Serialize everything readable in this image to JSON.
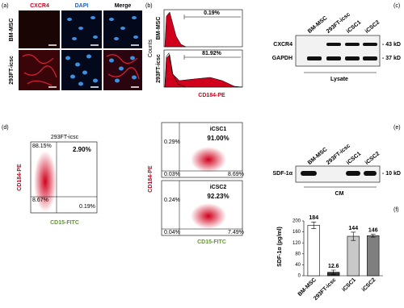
{
  "panels": {
    "a": {
      "label": "(a)",
      "columns": [
        "CXCR4",
        "DAPI",
        "Merge"
      ],
      "rows": [
        "BM-MSC",
        "293FT-icsc"
      ]
    },
    "b": {
      "label": "(b)",
      "rows": [
        "BM-MSC",
        "293FT-icsc"
      ],
      "y_label": "Counts",
      "x_label": "CD184-PE",
      "percentages": [
        "0.19%",
        "81.92%"
      ]
    },
    "c": {
      "label": "(c)",
      "lanes": [
        "BM-MSC",
        "293FT-icsc",
        "iCSC1",
        "iCSC2"
      ],
      "bands": [
        "CXCR4",
        "GAPDH"
      ],
      "sizes": [
        "- 43 kD",
        "- 37 kD"
      ],
      "footer": "Lysate"
    },
    "d": {
      "label": "(d)",
      "y_label": "CD184-PE",
      "x_label": "CD15-FITC",
      "plots": [
        {
          "title": "293FT-icsc",
          "quadrants": [
            "88.15%",
            "2.90%",
            "8.67%",
            "0.19%"
          ]
        },
        {
          "title": "iCSC1",
          "quadrants": [
            "0.29%",
            "91.00%",
            "0.03%",
            "8.69%"
          ]
        },
        {
          "title": "iCSC2",
          "quadrants": [
            "0.24%",
            "92.23%",
            "0.04%",
            "7.49%"
          ]
        }
      ]
    },
    "e": {
      "label": "(e)",
      "lanes": [
        "BM-MSC",
        "293FT-icsc",
        "iCSC1",
        "iCSC2"
      ],
      "band": "SDF-1α",
      "size": "- 10 kD",
      "footer": "CM"
    }
  },
  "chart_data": {
    "type": "bar",
    "panel_label": "(f)",
    "y_label": "SDF-1α (pg/ml)",
    "categories": [
      "BM-MSC",
      "293FT-icsc",
      "iCSC1",
      "iCSC2"
    ],
    "values": [
      184,
      12.6,
      144,
      146
    ],
    "errors": [
      12,
      8,
      15,
      5
    ],
    "colors": [
      "#ffffff",
      "#333333",
      "#c8c8c8",
      "#7f7f7f"
    ],
    "ylim": [
      0,
      200
    ],
    "yticks": [
      0,
      40,
      80,
      120,
      160,
      200
    ]
  }
}
